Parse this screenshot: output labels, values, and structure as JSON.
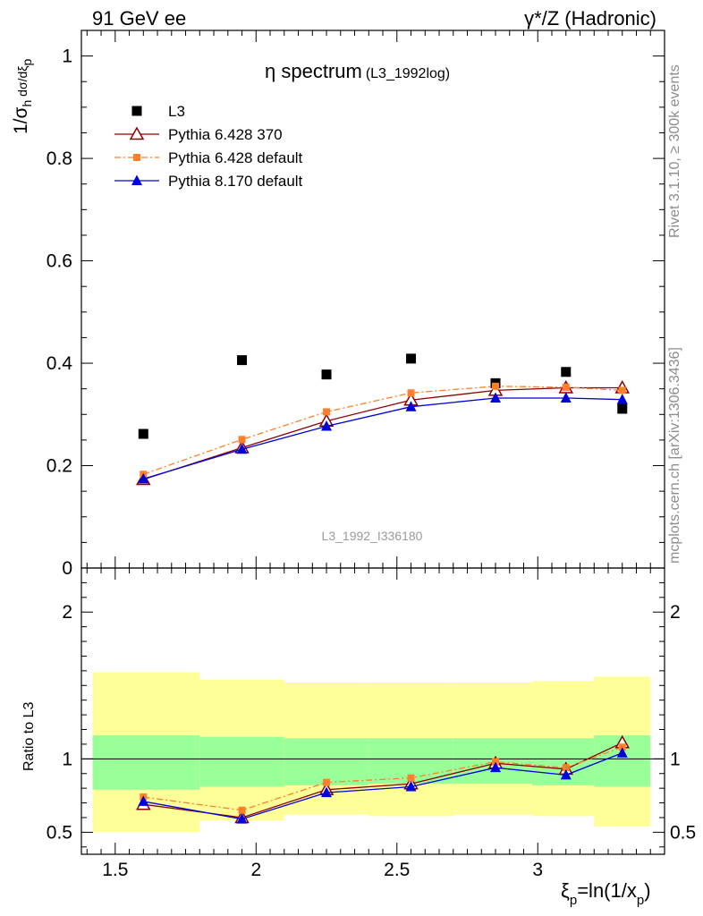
{
  "header": {
    "left": "91 GeV ee",
    "right": "γ*/Z (Hadronic)"
  },
  "side_labels": {
    "rivet": "Rivet 3.1.10, ≥ 300k events",
    "source": "mcplots.cern.ch [arXiv:1306.3436]"
  },
  "colors": {
    "data": "#000000",
    "pythia6_370": "#8b0000",
    "pythia6_default": "#ff7f2a",
    "pythia8_default": "#0000dd",
    "band_inner": "#99ff99",
    "band_outer": "#ffff99"
  },
  "chart_data": [
    {
      "type": "scatter",
      "title": "η spectrum",
      "title_suffix": "(L3_1992log)",
      "watermark": "L3_1992_I336180",
      "ylabel": "1/σh dσ/dξp",
      "ylabel_parts": {
        "base": "1/σ",
        "sub1": "h",
        "mid": " dσ/dξ",
        "sub2": "p"
      },
      "xlabel": "ξp=ln(1/xp)",
      "xlim": [
        1.38,
        3.45
      ],
      "ylim": [
        0,
        1.05
      ],
      "yticks": [
        0,
        0.2,
        0.4,
        0.6,
        0.8,
        1
      ],
      "ytick_labels": [
        "0",
        "0.2",
        "0.4",
        "0.6",
        "0.8",
        "1"
      ],
      "legend_position": "top-left",
      "series": [
        {
          "name": "L3",
          "marker": "square",
          "x": [
            1.6,
            1.95,
            2.25,
            2.55,
            2.85,
            3.1,
            3.3
          ],
          "y": [
            0.262,
            0.406,
            0.378,
            0.409,
            0.361,
            0.383,
            0.311
          ]
        },
        {
          "name": "Pythia 6.428 370",
          "marker": "triangle-open",
          "x": [
            1.6,
            1.95,
            2.25,
            2.55,
            2.85,
            3.1,
            3.3
          ],
          "y": [
            0.173,
            0.235,
            0.287,
            0.328,
            0.347,
            0.352,
            0.352
          ]
        },
        {
          "name": "Pythia 6.428 default",
          "marker": "square-small",
          "x": [
            1.6,
            1.95,
            2.25,
            2.55,
            2.85,
            3.1,
            3.3
          ],
          "y": [
            0.183,
            0.251,
            0.305,
            0.342,
            0.355,
            0.353,
            0.347
          ]
        },
        {
          "name": "Pythia 8.170 default",
          "marker": "triangle-filled",
          "x": [
            1.6,
            1.95,
            2.25,
            2.55,
            2.85,
            3.1,
            3.3
          ],
          "y": [
            0.174,
            0.232,
            0.277,
            0.315,
            0.332,
            0.332,
            0.329
          ]
        }
      ]
    },
    {
      "type": "line",
      "ylabel": "Ratio to L3",
      "xlabel": "ξp=ln(1/xp)",
      "xlabel_parts": {
        "xi": "ξ",
        "sub1": "p",
        "mid": "=ln(1/x",
        "sub2": "p",
        "end": ")"
      },
      "xlim": [
        1.38,
        3.45
      ],
      "ylim": [
        0.35,
        2.3
      ],
      "yticks": [
        0.5,
        1,
        2
      ],
      "ytick_labels": [
        "0.5",
        "1",
        "2"
      ],
      "xticks": [
        1.5,
        2,
        2.5,
        3
      ],
      "xtick_labels": [
        "1.5",
        "2",
        "2.5",
        "3"
      ],
      "reference_line": 1,
      "bands": [
        {
          "xlo": 1.42,
          "xhi": 1.8,
          "inner": [
            0.79,
            1.16
          ],
          "outer": [
            0.5,
            1.59
          ]
        },
        {
          "xlo": 1.8,
          "xhi": 2.1,
          "inner": [
            0.81,
            1.15
          ],
          "outer": [
            0.58,
            1.54
          ]
        },
        {
          "xlo": 2.1,
          "xhi": 2.4,
          "inner": [
            0.82,
            1.14
          ],
          "outer": [
            0.62,
            1.52
          ]
        },
        {
          "xlo": 2.4,
          "xhi": 2.7,
          "inner": [
            0.83,
            1.14
          ],
          "outer": [
            0.61,
            1.52
          ]
        },
        {
          "xlo": 2.7,
          "xhi": 2.98,
          "inner": [
            0.83,
            1.14
          ],
          "outer": [
            0.62,
            1.52
          ]
        },
        {
          "xlo": 2.98,
          "xhi": 3.2,
          "inner": [
            0.82,
            1.14
          ],
          "outer": [
            0.61,
            1.53
          ]
        },
        {
          "xlo": 3.2,
          "xhi": 3.4,
          "inner": [
            0.81,
            1.16
          ],
          "outer": [
            0.54,
            1.56
          ]
        }
      ],
      "series": [
        {
          "name": "Pythia 6.428 370",
          "marker": "triangle-open",
          "x": [
            1.6,
            1.95,
            2.25,
            2.55,
            2.85,
            3.1,
            3.3
          ],
          "y": [
            0.69,
            0.6,
            0.79,
            0.83,
            0.97,
            0.93,
            1.11
          ]
        },
        {
          "name": "Pythia 6.428 default",
          "marker": "square-small",
          "x": [
            1.6,
            1.95,
            2.25,
            2.55,
            2.85,
            3.1,
            3.3
          ],
          "y": [
            0.74,
            0.65,
            0.84,
            0.87,
            0.98,
            0.94,
            1.08
          ]
        },
        {
          "name": "Pythia 8.170 default",
          "marker": "triangle-filled",
          "x": [
            1.6,
            1.95,
            2.25,
            2.55,
            2.85,
            3.1,
            3.3
          ],
          "y": [
            0.71,
            0.59,
            0.77,
            0.81,
            0.94,
            0.89,
            1.04
          ]
        }
      ]
    }
  ]
}
